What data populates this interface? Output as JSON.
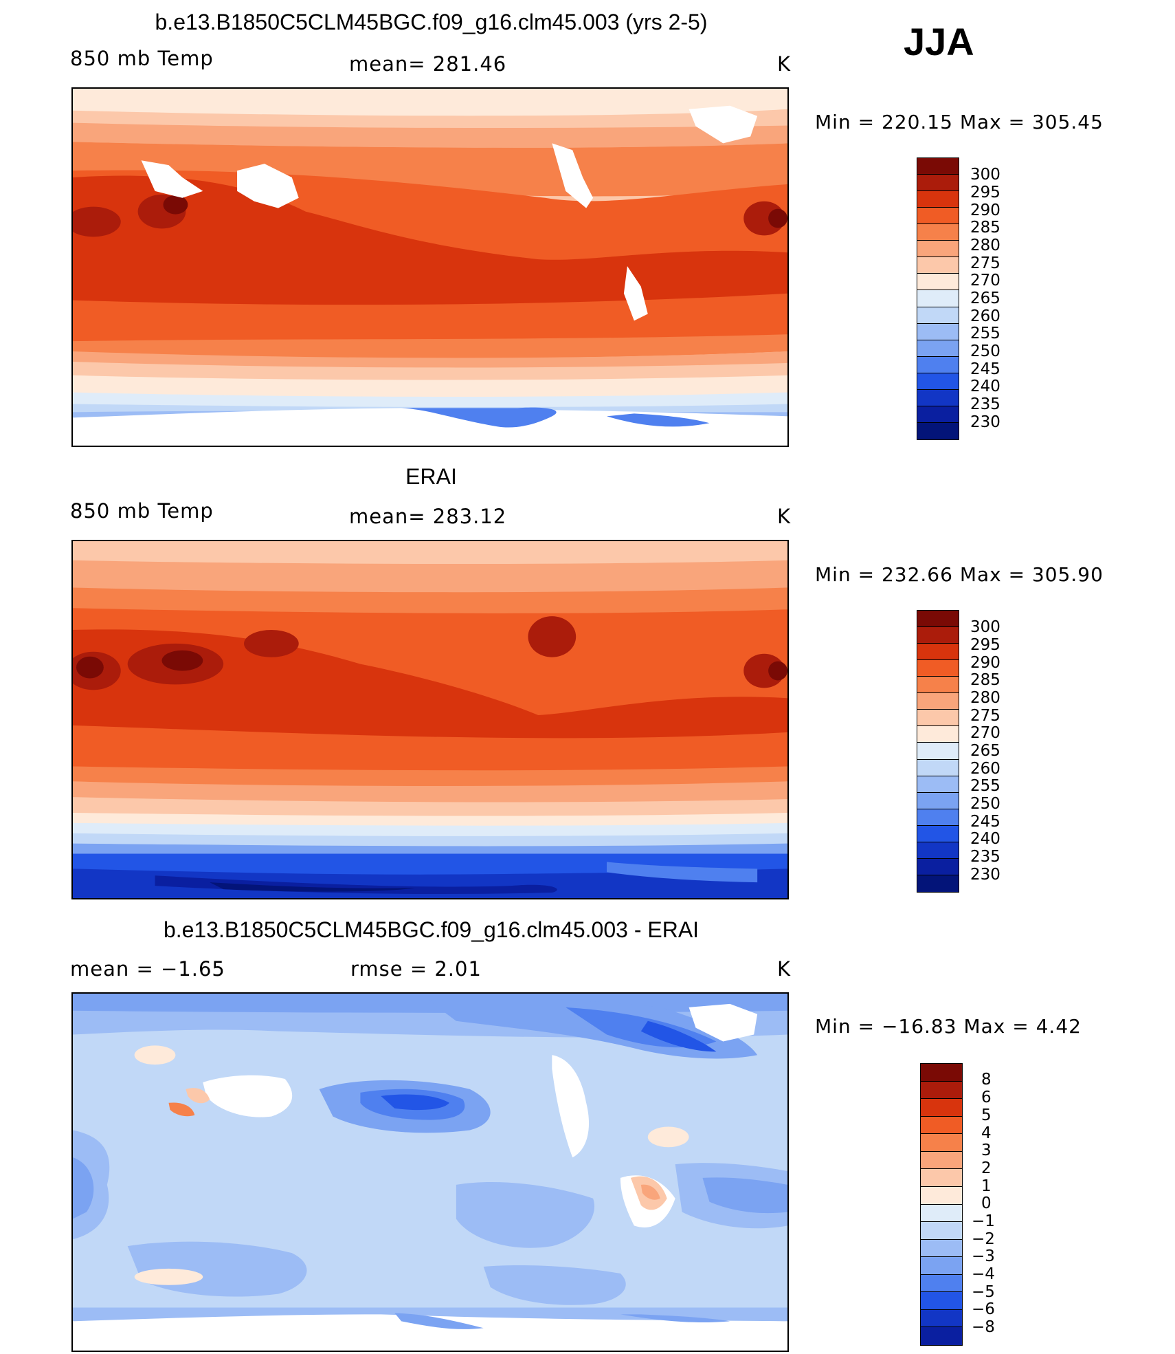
{
  "season": "JJA",
  "panels": [
    {
      "id": "model",
      "title": "b.e13.B1850C5CLM45BGC.f09_g16.clm45.003 (yrs 2-5)",
      "left_label": "850  mb  Temp",
      "center_label": "mean=  281.46",
      "units": "K",
      "minmax": "Min  =  220.15  Max  =  305.45",
      "colorbar": {
        "colors": [
          "#7a0a05",
          "#ab1c0b",
          "#d8340d",
          "#f05c25",
          "#f6814a",
          "#f9a57b",
          "#fcc8aa",
          "#feeada",
          "#dfecf9",
          "#c1d8f7",
          "#9cbcf5",
          "#7ba3f2",
          "#4f80ef",
          "#2255e6",
          "#1236c5",
          "#0a1fa0",
          "#031479"
        ],
        "labels": [
          "300",
          "295",
          "290",
          "285",
          "280",
          "275",
          "270",
          "265",
          "260",
          "255",
          "250",
          "245",
          "240",
          "235",
          "230"
        ]
      }
    },
    {
      "id": "obs",
      "title": "ERAI",
      "left_label": "850  mb  Temp",
      "center_label": "mean=  283.12",
      "units": "K",
      "minmax": "Min  =  232.66  Max  =  305.90",
      "colorbar": {
        "colors": [
          "#7a0a05",
          "#ab1c0b",
          "#d8340d",
          "#f05c25",
          "#f6814a",
          "#f9a57b",
          "#fcc8aa",
          "#feeada",
          "#dfecf9",
          "#c1d8f7",
          "#9cbcf5",
          "#7ba3f2",
          "#4f80ef",
          "#2255e6",
          "#1236c5",
          "#0a1fa0",
          "#031479"
        ],
        "labels": [
          "300",
          "295",
          "290",
          "285",
          "280",
          "275",
          "270",
          "265",
          "260",
          "255",
          "250",
          "245",
          "240",
          "235",
          "230"
        ]
      }
    },
    {
      "id": "diff",
      "title": "b.e13.B1850C5CLM45BGC.f09_g16.clm45.003 - ERAI",
      "left_label": "mean  =    −1.65",
      "center_label": "rmse  =     2.01",
      "units": "K",
      "minmax": "Min  =  −16.83  Max  =     4.42",
      "colorbar": {
        "colors": [
          "#7a0a05",
          "#ab1c0b",
          "#d8340d",
          "#f05c25",
          "#f6814a",
          "#f9a57b",
          "#fcc8aa",
          "#feeada",
          "#dfecf9",
          "#c1d8f7",
          "#9cbcf5",
          "#7ba3f2",
          "#4f80ef",
          "#2255e6",
          "#1236c5",
          "#0a1fa0"
        ],
        "labels": [
          "8",
          "6",
          "5",
          "4",
          "3",
          "2",
          "1",
          "0",
          "−1",
          "−2",
          "−3",
          "−4",
          "−5",
          "−6",
          "−8"
        ]
      }
    }
  ]
}
